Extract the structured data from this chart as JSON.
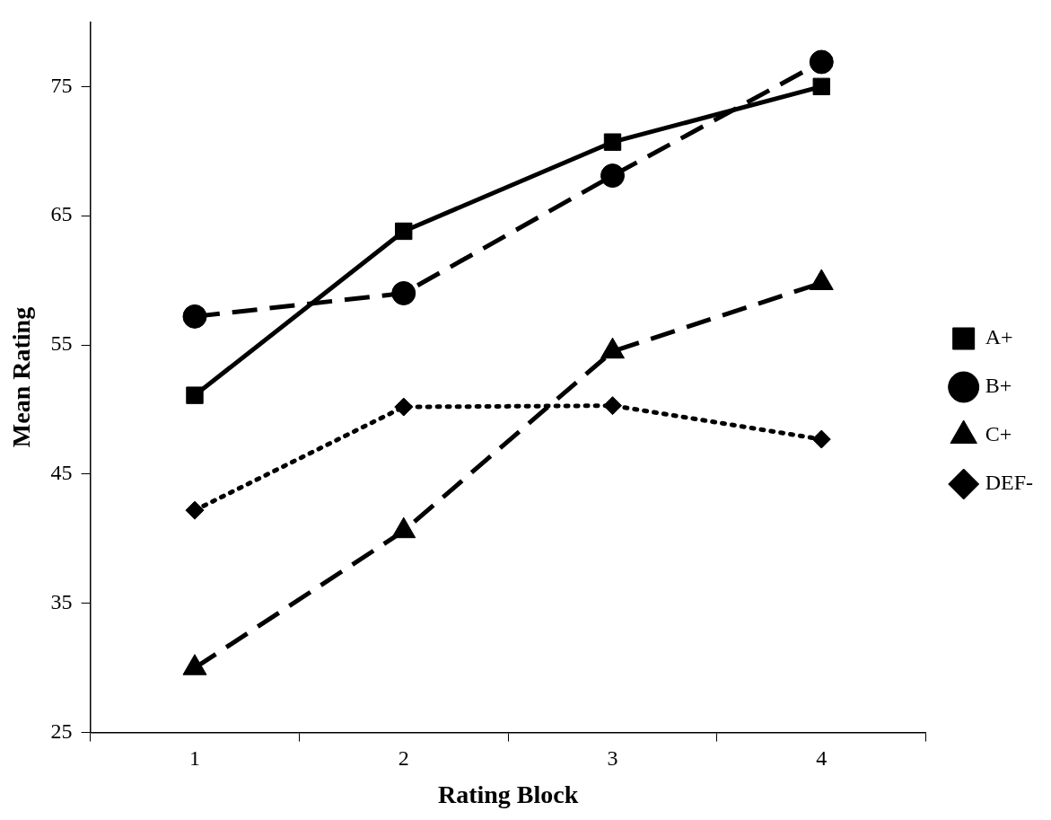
{
  "chart_data": {
    "type": "line",
    "xlabel": "Rating Block",
    "ylabel": "Mean Rating",
    "categories": [
      "1",
      "2",
      "3",
      "4"
    ],
    "series": [
      {
        "name": "A+",
        "color": "#000000",
        "marker": "square",
        "line_style": "solid",
        "values": [
          51.1,
          63.8,
          70.7,
          75.0
        ]
      },
      {
        "name": "B+",
        "color": "#000000",
        "marker": "circle",
        "line_style": "dashed",
        "values": [
          57.2,
          59.0,
          68.1,
          76.9
        ]
      },
      {
        "name": "C+",
        "color": "#000000",
        "marker": "triangle",
        "line_style": "dashed",
        "values": [
          30.0,
          40.6,
          54.5,
          59.8
        ]
      },
      {
        "name": "DEF-",
        "color": "#000000",
        "marker": "diamond",
        "line_style": "dotted",
        "values": [
          42.2,
          50.2,
          50.3,
          47.7
        ]
      }
    ],
    "ylim": [
      25,
      80
    ],
    "yticks": [
      25,
      35,
      45,
      55,
      65,
      75
    ],
    "grid": false,
    "legend": "right"
  }
}
